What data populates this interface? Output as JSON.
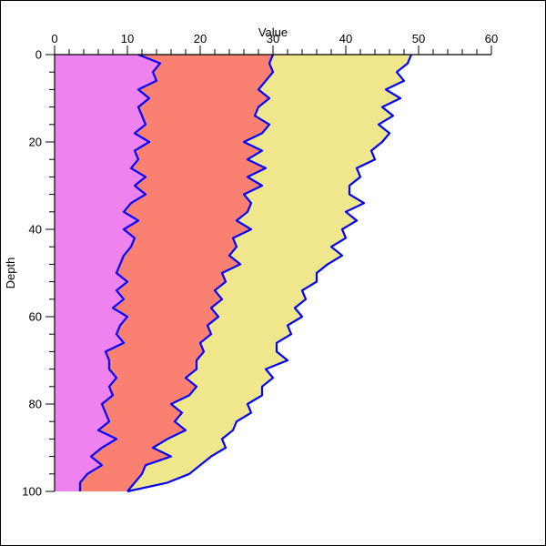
{
  "chart_data": {
    "type": "area",
    "orientation": "depth-vertical",
    "xlabel": "Value",
    "ylabel": "Depth",
    "xlim": [
      0,
      60
    ],
    "ylim": [
      0,
      100
    ],
    "y_reversed": true,
    "x_axis_position": "top",
    "grid": false,
    "x_ticks": [
      0,
      10,
      20,
      30,
      40,
      50,
      60
    ],
    "y_ticks": [
      0,
      20,
      40,
      60,
      80,
      100
    ],
    "x_tick_labels": [
      "0",
      "10",
      "20",
      "30",
      "40",
      "50",
      "60"
    ],
    "y_tick_labels": [
      "0",
      "20",
      "40",
      "60",
      "80",
      "100"
    ],
    "colors": {
      "fill_1": "#EE82EE",
      "fill_2": "#FA8072",
      "fill_3": "#F0E68C",
      "boundary_line": "#0000FF"
    },
    "depth": [
      0,
      2,
      4,
      6,
      8,
      10,
      12,
      14,
      16,
      18,
      20,
      22,
      24,
      26,
      28,
      30,
      32,
      34,
      36,
      38,
      40,
      42,
      44,
      46,
      48,
      50,
      52,
      54,
      56,
      58,
      60,
      62,
      64,
      66,
      68,
      70,
      72,
      74,
      76,
      78,
      80,
      82,
      84,
      86,
      88,
      90,
      92,
      94,
      96,
      98,
      100
    ],
    "series": [
      {
        "fill_color": "#EE82EE",
        "values": [
          11.5,
          14.5,
          13.5,
          14,
          11.5,
          13,
          11.5,
          12,
          12.5,
          11,
          13,
          11,
          11.5,
          10.5,
          12.5,
          11,
          12.5,
          10.5,
          9.5,
          11.5,
          9.5,
          11,
          10.5,
          9.5,
          9,
          8.5,
          10,
          8.5,
          9.5,
          8,
          10,
          9,
          8.5,
          9.5,
          7,
          7.5,
          7.5,
          8.5,
          7.5,
          8,
          6.5,
          7,
          7.5,
          6,
          8.5,
          6.5,
          5,
          6.5,
          4.5,
          3.5,
          3.5
        ]
      },
      {
        "fill_color": "#FA8072",
        "values": [
          30,
          29.5,
          30,
          29,
          28,
          29.5,
          28,
          27.5,
          29.5,
          28.5,
          26,
          28.5,
          26.5,
          29,
          26.5,
          28.5,
          26,
          27,
          26.5,
          25,
          27,
          24.5,
          25,
          24,
          25.5,
          23,
          23.5,
          22,
          23,
          21.5,
          22.5,
          21,
          21.5,
          20,
          20.5,
          19.5,
          19.5,
          18,
          19.5,
          18.5,
          16,
          17.5,
          16.5,
          18,
          15.5,
          13.5,
          16,
          12.5,
          12,
          11,
          10
        ]
      },
      {
        "fill_color": "#F0E68C",
        "values": [
          49,
          48.5,
          47,
          48,
          45.5,
          47.5,
          45,
          46.5,
          44.5,
          46,
          45,
          43.5,
          44,
          41.5,
          42,
          40.5,
          40.5,
          42.5,
          40,
          41.5,
          39.5,
          40,
          38,
          39.5,
          37.5,
          36,
          36,
          34,
          34.5,
          33,
          34,
          32,
          32.5,
          30.5,
          30.5,
          32,
          29,
          30,
          28.5,
          28.5,
          26.5,
          27,
          25,
          24.5,
          23,
          23.5,
          21.5,
          20,
          18.5,
          15.5,
          10
        ]
      }
    ]
  }
}
